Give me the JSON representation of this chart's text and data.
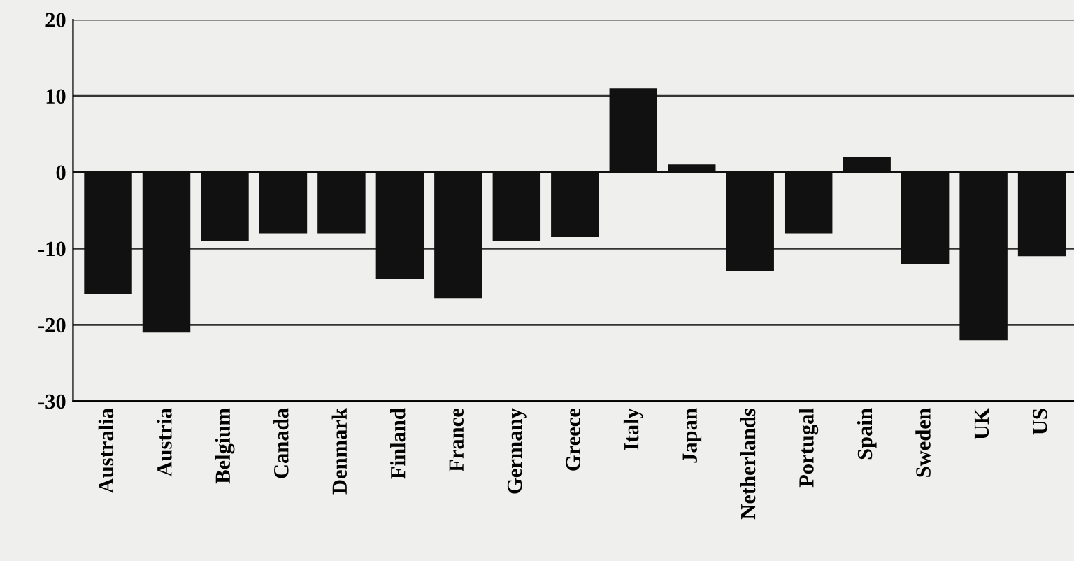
{
  "chart_data": {
    "type": "bar",
    "categories": [
      "Australia",
      "Austria",
      "Belgium",
      "Canada",
      "Denmark",
      "Finland",
      "France",
      "Germany",
      "Greece",
      "Italy",
      "Japan",
      "Netherlands",
      "Portugal",
      "Spain",
      "Sweden",
      "UK",
      "US"
    ],
    "values": [
      -16,
      -21,
      -9,
      -8,
      -8,
      -14,
      -16.5,
      -9,
      -8.5,
      11,
      1,
      -13,
      -8,
      2,
      -12,
      -22,
      -11
    ],
    "color": "#111111",
    "ylim": [
      -30,
      20
    ],
    "yticks": [
      -30,
      -20,
      -10,
      0,
      10,
      20
    ],
    "grid": "y"
  }
}
